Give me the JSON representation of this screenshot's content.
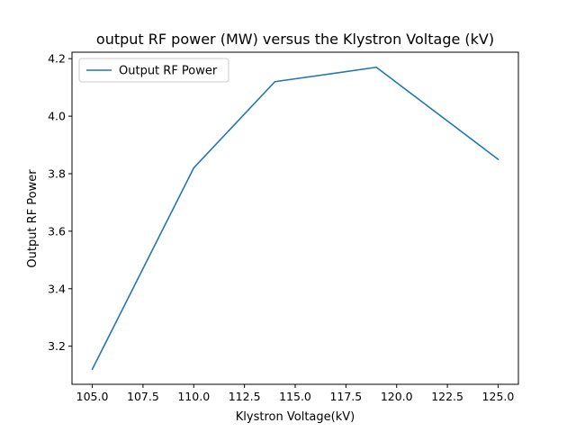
{
  "chart_data": {
    "type": "line",
    "title": "output RF power (MW) versus the Klystron Voltage (kV)",
    "xlabel": "Klystron Voltage(kV)",
    "ylabel": "Output RF Power",
    "x": [
      105,
      110,
      114,
      119,
      125
    ],
    "series": [
      {
        "name": "Output RF Power",
        "values": [
          3.12,
          3.82,
          4.12,
          4.17,
          3.85
        ],
        "color": "#1f77b4"
      }
    ],
    "xlim": [
      104.0,
      126.0
    ],
    "ylim": [
      3.0675,
      4.2225
    ],
    "xticks": [
      "105.0",
      "107.5",
      "110.0",
      "112.5",
      "115.0",
      "117.5",
      "120.0",
      "122.5",
      "125.0"
    ],
    "yticks": [
      "3.2",
      "3.4",
      "3.6",
      "3.8",
      "4.0",
      "4.2"
    ],
    "grid": false,
    "legend": "upper left"
  }
}
